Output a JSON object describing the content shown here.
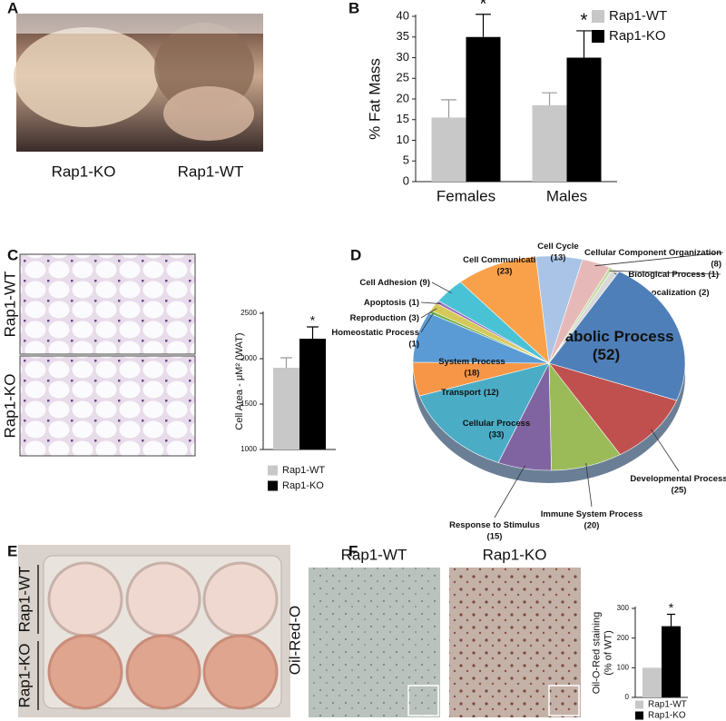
{
  "panel_labels": [
    "A",
    "B",
    "C",
    "D",
    "E",
    "F"
  ],
  "photos": {
    "a": {
      "labels": [
        "Rap1-KO",
        "Rap1-WT"
      ]
    },
    "c": {
      "labels": [
        "Rap1-WT",
        "Rap1-KO"
      ]
    },
    "e": {
      "labels": [
        "Rap1-WT",
        "Rap1-KO"
      ]
    },
    "f": {
      "labels": [
        "Rap1-WT",
        "Rap1-KO"
      ],
      "stain": "Oil-Red-O"
    }
  },
  "chart_data": [
    {
      "type": "bar",
      "y_label": [
        "% Fat Mass"
      ],
      "categories": [
        "Females",
        "Males"
      ],
      "series": [
        {
          "name": "Rap1-WT",
          "color": "#c8c8c8",
          "values": [
            15.5,
            18.5
          ],
          "errors": [
            4.3,
            3
          ]
        },
        {
          "name": "Rap1-KO",
          "color": "#000000",
          "values": [
            35,
            30
          ],
          "errors": [
            5.5,
            6.5
          ]
        }
      ],
      "annotations": [
        "*",
        "*"
      ],
      "ylim": [
        0,
        40
      ],
      "yticks": [
        0,
        5,
        10,
        15,
        20,
        25,
        30,
        35,
        40
      ],
      "legend": "top-right"
    },
    {
      "type": "bar",
      "y_label": [
        "Cell Area - μM² (WAT)"
      ],
      "series": [
        {
          "name": "Rap1-WT",
          "color": "#c8c8c8",
          "values": [
            1900
          ],
          "errors": [
            110
          ]
        },
        {
          "name": "Rap1-KO",
          "color": "#000000",
          "values": [
            2220
          ],
          "errors": [
            130
          ]
        }
      ],
      "annotations": [
        "*"
      ],
      "ylim": [
        1000,
        2500
      ],
      "yticks": [
        1000,
        1500,
        2000,
        2500
      ],
      "legend": "bottom"
    },
    {
      "type": "pie",
      "categories": [
        "Localization",
        "Metabolic Process",
        "Developmental Process",
        "Immune System Process",
        "Response to Stimulus",
        "Cellular Process",
        "Transport",
        "System Process",
        "Homeostatic Process",
        "Reproduction",
        "Apoptosis",
        "Cell Adhesion",
        "Cell Communication",
        "Cell Cycle",
        "Cellular Component Organization",
        "Biological Process"
      ],
      "values": [
        2,
        52,
        25,
        20,
        15,
        33,
        12,
        18,
        1,
        3,
        1,
        9,
        23,
        13,
        8,
        1
      ],
      "value_labels": [
        "(2)",
        "(52)",
        "(25)",
        "(20)",
        "(15)",
        "(33)",
        "(12)",
        "(18)",
        "(1)",
        "(3)",
        "(1)",
        "(9)",
        "(23)",
        "(13)",
        "(8)",
        "(1)"
      ],
      "colors": [
        "#d9d9d9",
        "#4f7fb8",
        "#c0504d",
        "#9bbb59",
        "#8064a2",
        "#4bacc6",
        "#f79646",
        "#5b9bd5",
        "#70ad47",
        "#d6c95a",
        "#9a6fbf",
        "#4ac2d6",
        "#f9a14a",
        "#a9c4e6",
        "#e6b9b8",
        "#c4dba0"
      ]
    },
    {
      "type": "bar",
      "y_label": [
        "Oil-O-Red staining",
        "(% of WT)"
      ],
      "series": [
        {
          "name": "Rap1-WT",
          "color": "#c8c8c8",
          "values": [
            100
          ]
        },
        {
          "name": "Rap1-KO",
          "color": "#000000",
          "values": [
            240
          ],
          "errors": [
            40
          ]
        }
      ],
      "annotations": [
        "*"
      ],
      "ylim": [
        0,
        300
      ],
      "yticks": [
        0,
        100,
        200,
        300
      ],
      "legend": "bottom"
    }
  ]
}
